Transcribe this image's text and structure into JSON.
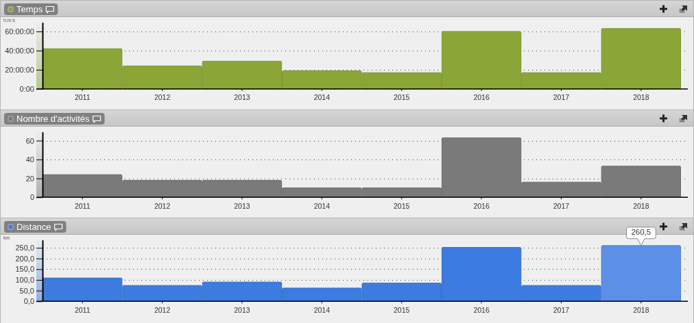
{
  "chart_data": [
    {
      "type": "bar",
      "title": "Temps",
      "ylabel": "h:m:s",
      "categories": [
        "2011",
        "2012",
        "2013",
        "2014",
        "2015",
        "2016",
        "2017",
        "2018"
      ],
      "values": [
        42,
        24,
        29,
        19,
        17,
        60,
        17,
        63
      ],
      "color": "#8ba637",
      "ylim": [
        0,
        69.5
      ],
      "yticks": [
        {
          "value": 0,
          "label": "0:00"
        },
        {
          "value": 20,
          "label": "20:00:00"
        },
        {
          "value": 40,
          "label": "40:00:00"
        },
        {
          "value": 60,
          "label": "60:00:00"
        }
      ],
      "grid": "y"
    },
    {
      "type": "bar",
      "title": "Nombre d'activités",
      "categories": [
        "2011",
        "2012",
        "2013",
        "2014",
        "2015",
        "2016",
        "2017",
        "2018"
      ],
      "values": [
        24,
        18,
        18,
        10,
        10,
        63,
        16,
        33
      ],
      "color": "#7a7a7a",
      "ylim": [
        0,
        69.3
      ],
      "yticks": [
        0,
        20,
        40,
        60
      ],
      "grid": "y"
    },
    {
      "type": "bar",
      "title": "Distance",
      "ylabel": "km",
      "categories": [
        "2011",
        "2012",
        "2013",
        "2014",
        "2015",
        "2016",
        "2017",
        "2018"
      ],
      "values": [
        109,
        74,
        90,
        62,
        85,
        252,
        74,
        260.5
      ],
      "color": "#3c7be0",
      "colors": [
        "#3c7be0",
        "#3c7be0",
        "#3c7be0",
        "#3c7be0",
        "#3c7be0",
        "#3c7be0",
        "#3c7be0",
        "#5b90e6"
      ],
      "value_labels": [
        null,
        null,
        null,
        null,
        null,
        null,
        null,
        "260,5"
      ],
      "ylim": [
        0,
        286.6
      ],
      "yticks": [
        {
          "value": 0,
          "label": "0,0"
        },
        {
          "value": 50,
          "label": "50,0"
        },
        {
          "value": 100,
          "label": "100,0"
        },
        {
          "value": 150,
          "label": "150,0"
        },
        {
          "value": 200,
          "label": "200,0"
        },
        {
          "value": 250,
          "label": "250,0"
        }
      ],
      "grid": "y"
    }
  ]
}
